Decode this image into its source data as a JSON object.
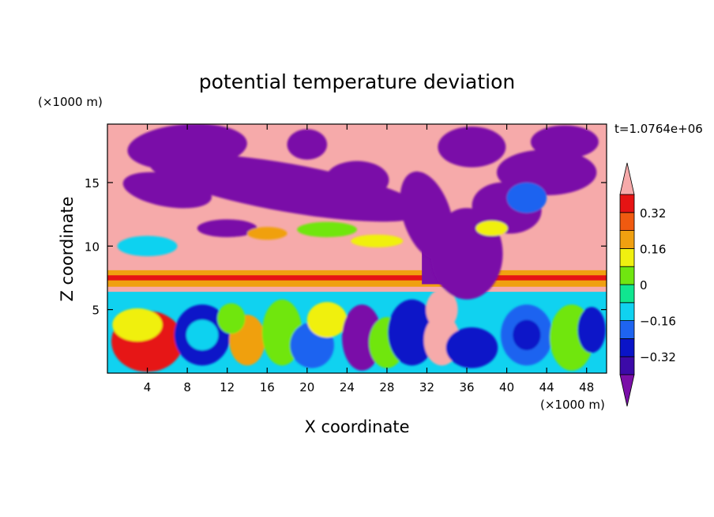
{
  "chart_data": {
    "type": "heatmap",
    "title": "potential temperature deviation",
    "time_label": "t=1.0764e+06",
    "xlabel": "X coordinate",
    "ylabel": "Z coordinate",
    "x_unit": "(×1000 m)",
    "y_unit": "(×1000 m)",
    "xlim": [
      0,
      50
    ],
    "ylim": [
      0,
      19.6
    ],
    "x_ticks": [
      4,
      8,
      12,
      16,
      20,
      24,
      28,
      32,
      36,
      40,
      44,
      48
    ],
    "y_ticks": [
      5,
      10,
      15
    ],
    "colorbar": {
      "levels": [
        -0.4,
        -0.32,
        -0.24,
        -0.16,
        -0.08,
        0,
        0.08,
        0.16,
        0.24,
        0.32,
        0.4
      ],
      "tick_labels": [
        "0.32",
        "0.16",
        "0",
        "−0.16",
        "−0.32"
      ],
      "tick_values": [
        0.32,
        0.16,
        0,
        -0.16,
        -0.32
      ],
      "colors": [
        "#7a0fa8",
        "#3c0aa8",
        "#0a14c8",
        "#1e64f0",
        "#10d2f0",
        "#10e690",
        "#70e610",
        "#f0f010",
        "#f0a010",
        "#f05a10",
        "#e61414",
        "#f6aaaa"
      ],
      "over_color": "#f6aaaa",
      "under_color": "#7a0fa8"
    },
    "colors": {
      "purple": "#7a0fa8",
      "pink": "#f6aaaa",
      "red": "#e61414",
      "orange": "#f0a010",
      "yellow": "#f0f010",
      "green": "#70e610",
      "cyan": "#10d2f0",
      "blue": "#1e64f0",
      "navy": "#0a14c8"
    }
  }
}
